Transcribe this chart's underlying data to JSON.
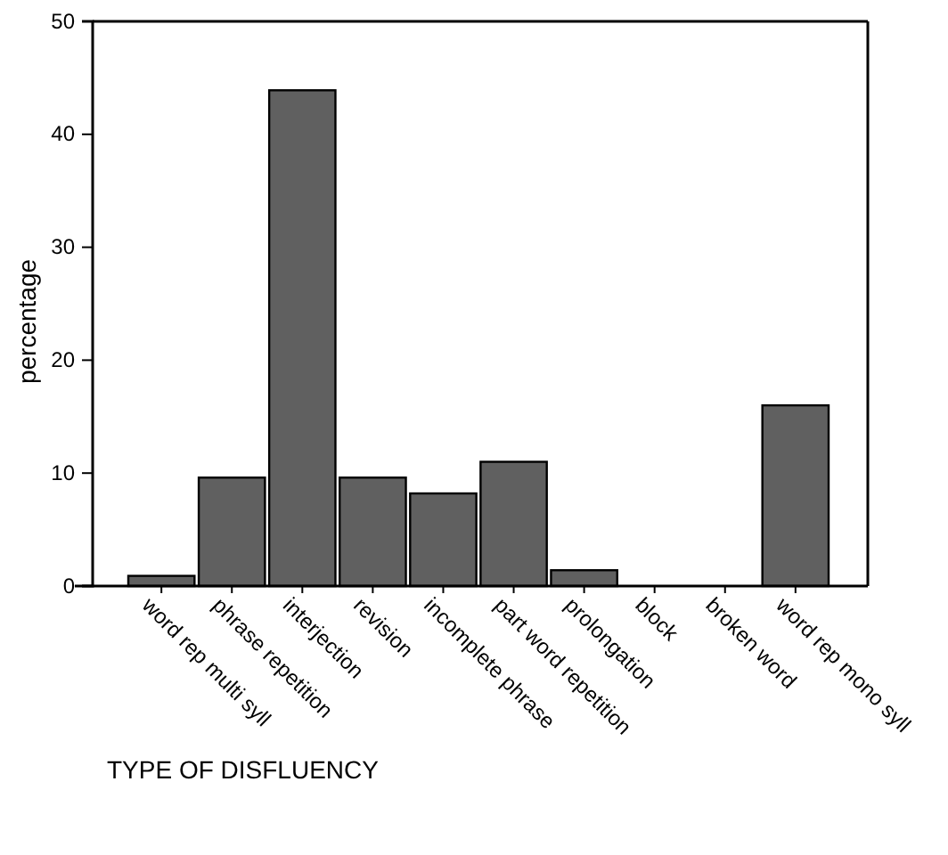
{
  "chart_data": {
    "type": "bar",
    "xlabel": "TYPE OF DISFLUENCY",
    "ylabel": "percentage",
    "categories": [
      "word rep multi syll",
      "phrase repetition",
      "interjection",
      "revision",
      "incomplete phrase",
      "part word repetition",
      "prolongation",
      "block",
      "broken word",
      "word rep mono syll"
    ],
    "values": [
      0.9,
      9.6,
      43.9,
      9.6,
      8.2,
      11.0,
      1.4,
      0,
      0,
      16.0
    ],
    "color": "#606060",
    "ylim": [
      0,
      50
    ],
    "yticks": [
      0,
      10,
      20,
      30,
      40,
      50
    ]
  }
}
